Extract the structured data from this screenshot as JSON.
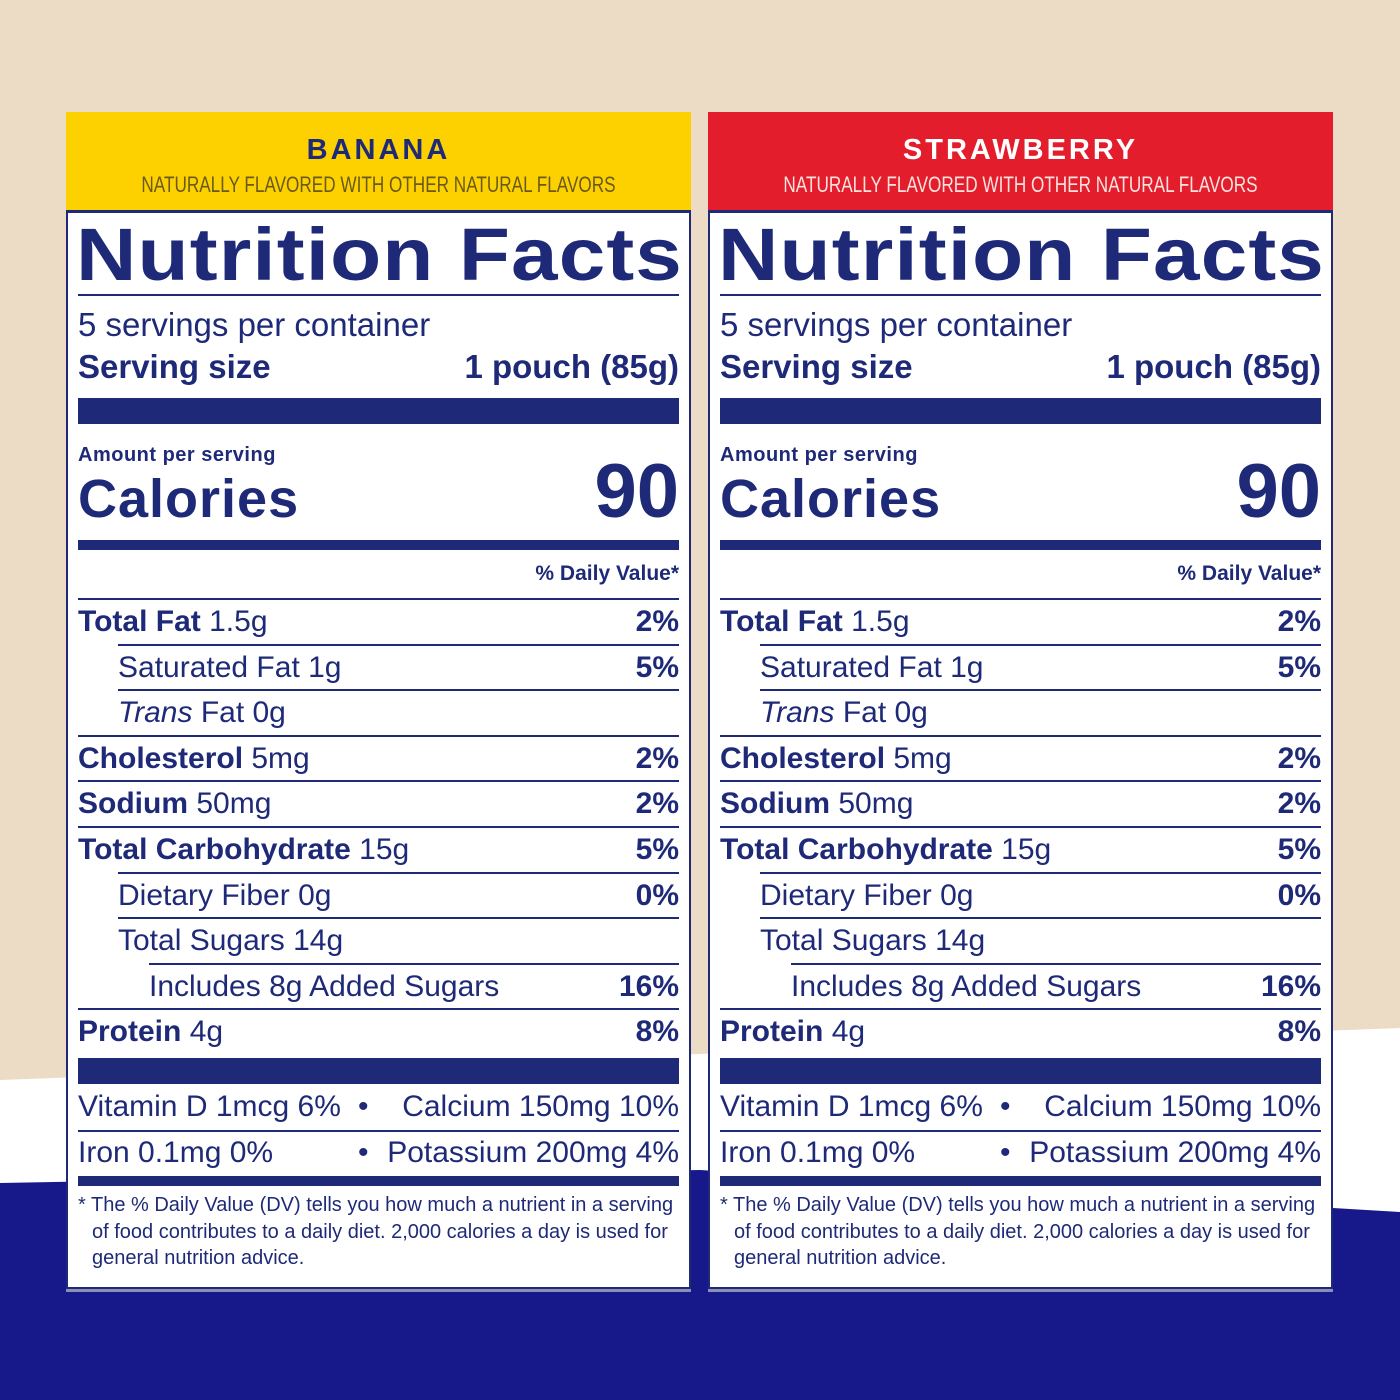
{
  "panels": [
    {
      "flavor": "BANANA",
      "subtitle": "NATURALLY FLAVORED WITH  OTHER NATURAL FLAVORS",
      "header_color": "#fdd000",
      "flavor_color": "#1e2a78",
      "subtitle_color": "#6a5a1a",
      "title": "Nutrition Facts",
      "servings": "5 servings per container",
      "serving_size_label": "Serving size",
      "serving_size_value": "1 pouch (85g)",
      "amount_per_serving": "Amount per serving",
      "calories_label": "Calories",
      "calories_value": "90",
      "dv_header": "% Daily Value*",
      "nutrients": [
        {
          "name": "Total Fat",
          "amount": "1.5g",
          "dv": "2%",
          "indent": 0,
          "bold": true
        },
        {
          "name": "Saturated Fat",
          "amount": "1g",
          "dv": "5%",
          "indent": 1,
          "bold": false
        },
        {
          "name": "Trans",
          "amount": "Fat 0g",
          "dv": "",
          "indent": 1,
          "bold": false,
          "italic": true
        },
        {
          "name": "Cholesterol",
          "amount": "5mg",
          "dv": "2%",
          "indent": 0,
          "bold": true
        },
        {
          "name": "Sodium",
          "amount": "50mg",
          "dv": "2%",
          "indent": 0,
          "bold": true
        },
        {
          "name": "Total Carbohydrate",
          "amount": "15g",
          "dv": "5%",
          "indent": 0,
          "bold": true
        },
        {
          "name": "Dietary Fiber",
          "amount": "0g",
          "dv": "0%",
          "indent": 1,
          "bold": false
        },
        {
          "name": "Total Sugars",
          "amount": "14g",
          "dv": "",
          "indent": 1,
          "bold": false
        },
        {
          "name": "Includes 8g Added Sugars",
          "amount": "",
          "dv": "16%",
          "indent": 2,
          "bold": false
        },
        {
          "name": "Protein",
          "amount": "4g",
          "dv": "8%",
          "indent": 0,
          "bold": true
        }
      ],
      "vitamins": [
        {
          "left": "Vitamin D 1mcg 6%",
          "right": "Calcium 150mg 10%"
        },
        {
          "left": "Iron 0.1mg 0%",
          "right": "Potassium 200mg 4%"
        }
      ],
      "bullet": "•",
      "footnote": "* The % Daily Value (DV) tells you how much a nutrient in a serving of food contributes to a daily diet. 2,000 calories a day is used for general nutrition advice."
    },
    {
      "flavor": "STRAWBERRY",
      "subtitle": "NATURALLY FLAVORED WITH  OTHER NATURAL FLAVORS",
      "header_color": "#e31d2b",
      "flavor_color": "#ffffff",
      "subtitle_color": "#fbe3e0",
      "title": "Nutrition Facts",
      "servings": "5 servings per container",
      "serving_size_label": "Serving size",
      "serving_size_value": "1 pouch (85g)",
      "amount_per_serving": "Amount per serving",
      "calories_label": "Calories",
      "calories_value": "90",
      "dv_header": "% Daily Value*",
      "nutrients": [
        {
          "name": "Total Fat",
          "amount": "1.5g",
          "dv": "2%",
          "indent": 0,
          "bold": true
        },
        {
          "name": "Saturated Fat",
          "amount": "1g",
          "dv": "5%",
          "indent": 1,
          "bold": false
        },
        {
          "name": "Trans",
          "amount": "Fat 0g",
          "dv": "",
          "indent": 1,
          "bold": false,
          "italic": true
        },
        {
          "name": "Cholesterol",
          "amount": "5mg",
          "dv": "2%",
          "indent": 0,
          "bold": true
        },
        {
          "name": "Sodium",
          "amount": "50mg",
          "dv": "2%",
          "indent": 0,
          "bold": true
        },
        {
          "name": "Total Carbohydrate",
          "amount": "15g",
          "dv": "5%",
          "indent": 0,
          "bold": true
        },
        {
          "name": "Dietary Fiber",
          "amount": "0g",
          "dv": "0%",
          "indent": 1,
          "bold": false
        },
        {
          "name": "Total Sugars",
          "amount": "14g",
          "dv": "",
          "indent": 1,
          "bold": false
        },
        {
          "name": "Includes 8g Added Sugars",
          "amount": "",
          "dv": "16%",
          "indent": 2,
          "bold": false
        },
        {
          "name": "Protein",
          "amount": "4g",
          "dv": "8%",
          "indent": 0,
          "bold": true
        }
      ],
      "vitamins": [
        {
          "left": "Vitamin D 1mcg 6%",
          "right": "Calcium 150mg 10%"
        },
        {
          "left": "Iron 0.1mg 0%",
          "right": "Potassium 200mg 4%"
        }
      ],
      "bullet": "•",
      "footnote": "* The % Daily Value (DV) tells you how much a nutrient in a serving of food contributes to a daily diet. 2,000 calories a day is used for general nutrition advice."
    }
  ]
}
